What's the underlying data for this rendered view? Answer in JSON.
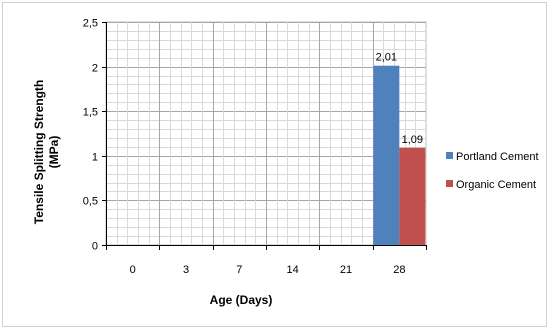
{
  "chart_data": {
    "type": "bar",
    "categories": [
      "0",
      "3",
      "7",
      "14",
      "21",
      "28"
    ],
    "series": [
      {
        "name": "Portland Cement",
        "values": [
          null,
          null,
          null,
          null,
          null,
          2.01
        ],
        "labels": [
          "",
          "",
          "",
          "",
          "",
          "2,01"
        ]
      },
      {
        "name": "Organic Cement",
        "values": [
          null,
          null,
          null,
          null,
          null,
          1.09
        ],
        "labels": [
          "",
          "",
          "",
          "",
          "",
          "1,09"
        ]
      }
    ],
    "title": "",
    "xlabel": "Age (Days)",
    "ylabel_line1": "Tensile Splitting Strength",
    "ylabel_line2": "(MPa)",
    "ylim": [
      0,
      2.5
    ],
    "yticks": [
      0,
      0.5,
      1,
      1.5,
      2,
      2.5
    ],
    "ytick_labels": [
      "0",
      "0,5",
      "1",
      "1,5",
      "2",
      "2,5"
    ],
    "grid": true,
    "legend": "right",
    "colors": {
      "Portland Cement": "#4f81bd",
      "Organic Cement": "#c0504d"
    }
  }
}
